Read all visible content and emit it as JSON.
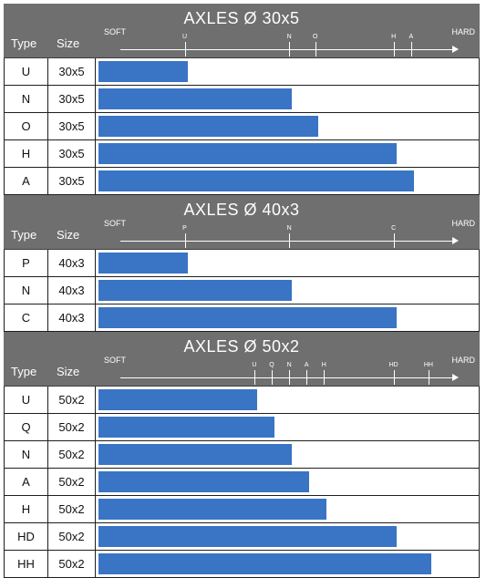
{
  "labels": {
    "type": "Type",
    "size": "Size",
    "soft": "SOFT",
    "hard": "HARD"
  },
  "chart_data": [
    {
      "type": "bar",
      "orientation": "horizontal",
      "title": "AXLES Ø 30x5",
      "column_headers": [
        "Type",
        "Size"
      ],
      "scale_labels": [
        "SOFT",
        "HARD"
      ],
      "ticks": [
        {
          "label": "U",
          "value": 1.0
        },
        {
          "label": "N",
          "value": 2.2
        },
        {
          "label": "O",
          "value": 2.5
        },
        {
          "label": "H",
          "value": 3.4
        },
        {
          "label": "A",
          "value": 3.6
        }
      ],
      "rows": [
        {
          "type": "U",
          "size": "30x5",
          "value": 1.0
        },
        {
          "type": "N",
          "size": "30x5",
          "value": 2.2
        },
        {
          "type": "O",
          "size": "30x5",
          "value": 2.5
        },
        {
          "type": "H",
          "size": "30x5",
          "value": 3.4
        },
        {
          "type": "A",
          "size": "30x5",
          "value": 3.6
        }
      ],
      "color": "#3a74c4"
    },
    {
      "type": "bar",
      "orientation": "horizontal",
      "title": "AXLES Ø 40x3",
      "column_headers": [
        "Type",
        "Size"
      ],
      "scale_labels": [
        "SOFT",
        "HARD"
      ],
      "ticks": [
        {
          "label": "P",
          "value": 1.0
        },
        {
          "label": "N",
          "value": 2.2
        },
        {
          "label": "C",
          "value": 3.4
        }
      ],
      "rows": [
        {
          "type": "P",
          "size": "40x3",
          "value": 1.0
        },
        {
          "type": "N",
          "size": "40x3",
          "value": 2.2
        },
        {
          "type": "C",
          "size": "40x3",
          "value": 3.4
        }
      ],
      "color": "#3a74c4"
    },
    {
      "type": "bar",
      "orientation": "horizontal",
      "title": "AXLES Ø 50x2",
      "column_headers": [
        "Type",
        "Size"
      ],
      "scale_labels": [
        "SOFT",
        "HARD"
      ],
      "ticks": [
        {
          "label": "U",
          "value": 1.8
        },
        {
          "label": "Q",
          "value": 2.0
        },
        {
          "label": "N",
          "value": 2.2
        },
        {
          "label": "A",
          "value": 2.4
        },
        {
          "label": "H",
          "value": 2.6
        },
        {
          "label": "HD",
          "value": 3.4
        },
        {
          "label": "HH",
          "value": 3.8
        }
      ],
      "rows": [
        {
          "type": "U",
          "size": "50x2",
          "value": 1.8
        },
        {
          "type": "Q",
          "size": "50x2",
          "value": 2.0
        },
        {
          "type": "N",
          "size": "50x2",
          "value": 2.2
        },
        {
          "type": "A",
          "size": "50x2",
          "value": 2.4
        },
        {
          "type": "H",
          "size": "50x2",
          "value": 2.6
        },
        {
          "type": "HD",
          "size": "50x2",
          "value": 3.4
        },
        {
          "type": "HH",
          "size": "50x2",
          "value": 3.8
        }
      ],
      "color": "#3a74c4"
    }
  ]
}
